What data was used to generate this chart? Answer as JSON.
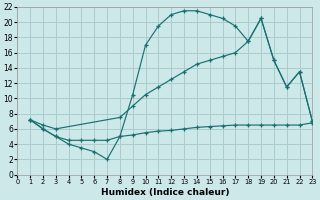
{
  "xlabel": "Humidex (Indice chaleur)",
  "bg_color": "#cce8e8",
  "grid_color": "#aacccc",
  "line_color": "#1a7070",
  "xlim": [
    0,
    23
  ],
  "ylim": [
    0,
    22
  ],
  "xticks": [
    0,
    1,
    2,
    3,
    4,
    5,
    6,
    7,
    8,
    9,
    10,
    11,
    12,
    13,
    14,
    15,
    16,
    17,
    18,
    19,
    20,
    21,
    22,
    23
  ],
  "yticks": [
    0,
    2,
    4,
    6,
    8,
    10,
    12,
    14,
    16,
    18,
    20,
    22
  ],
  "curve1_x": [
    1,
    2,
    3,
    4,
    5,
    6,
    7,
    8,
    9,
    10,
    11,
    12,
    13,
    14,
    15,
    16,
    17,
    18,
    19,
    20,
    21,
    22,
    23
  ],
  "curve1_y": [
    7.2,
    6.0,
    5.0,
    4.0,
    3.5,
    3.0,
    2.0,
    5.0,
    10.5,
    17.0,
    19.5,
    21.0,
    21.5,
    21.5,
    21.0,
    20.5,
    19.5,
    17.5,
    20.5,
    15.0,
    11.5,
    13.5,
    7.0
  ],
  "curve2_x": [
    1,
    2,
    3,
    8,
    9,
    10,
    11,
    12,
    13,
    14,
    15,
    16,
    17,
    18,
    19,
    20,
    21,
    22,
    23
  ],
  "curve2_y": [
    7.2,
    6.5,
    6.0,
    7.5,
    9.0,
    10.5,
    11.5,
    12.5,
    13.5,
    14.5,
    15.0,
    15.5,
    16.0,
    17.5,
    20.5,
    15.0,
    11.5,
    13.5,
    7.0
  ],
  "curve3_x": [
    1,
    2,
    3,
    4,
    5,
    6,
    7,
    8,
    9,
    10,
    11,
    12,
    13,
    14,
    15,
    16,
    17,
    18,
    19,
    20,
    21,
    22,
    23
  ],
  "curve3_y": [
    7.2,
    6.0,
    5.0,
    4.5,
    4.5,
    4.5,
    4.5,
    5.0,
    5.2,
    5.5,
    5.7,
    5.8,
    6.0,
    6.2,
    6.3,
    6.4,
    6.5,
    6.5,
    6.5,
    6.5,
    6.5,
    6.5,
    6.8
  ]
}
